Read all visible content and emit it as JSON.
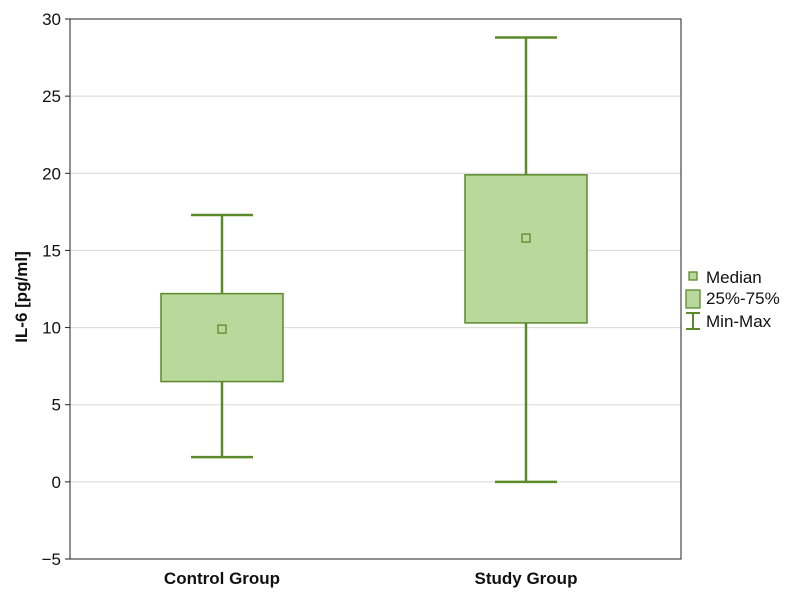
{
  "chart_data": {
    "type": "boxplot",
    "ylabel": "IL-6 [pg/ml]",
    "xlabel": "",
    "ylim": [
      -5,
      30
    ],
    "yticks": [
      -5,
      0,
      5,
      10,
      15,
      20,
      25,
      30
    ],
    "grid": true,
    "categories": [
      "Control Group",
      "Study Group"
    ],
    "boxes": [
      {
        "category": "Control Group",
        "min": 1.6,
        "q1": 6.5,
        "median": 9.9,
        "q3": 12.2,
        "max": 17.3
      },
      {
        "category": "Study Group",
        "min": 0.0,
        "q1": 10.3,
        "median": 15.8,
        "q3": 19.9,
        "max": 28.8
      }
    ],
    "legend": {
      "position": "right",
      "items": [
        {
          "kind": "median",
          "label": "Median"
        },
        {
          "kind": "box",
          "label": "25%-75%"
        },
        {
          "kind": "whisker",
          "label": "Min-Max"
        }
      ]
    },
    "colors": {
      "stroke": "#5b8a2a",
      "fill": "#b9d89c",
      "grid": "#d9d9d9"
    }
  }
}
